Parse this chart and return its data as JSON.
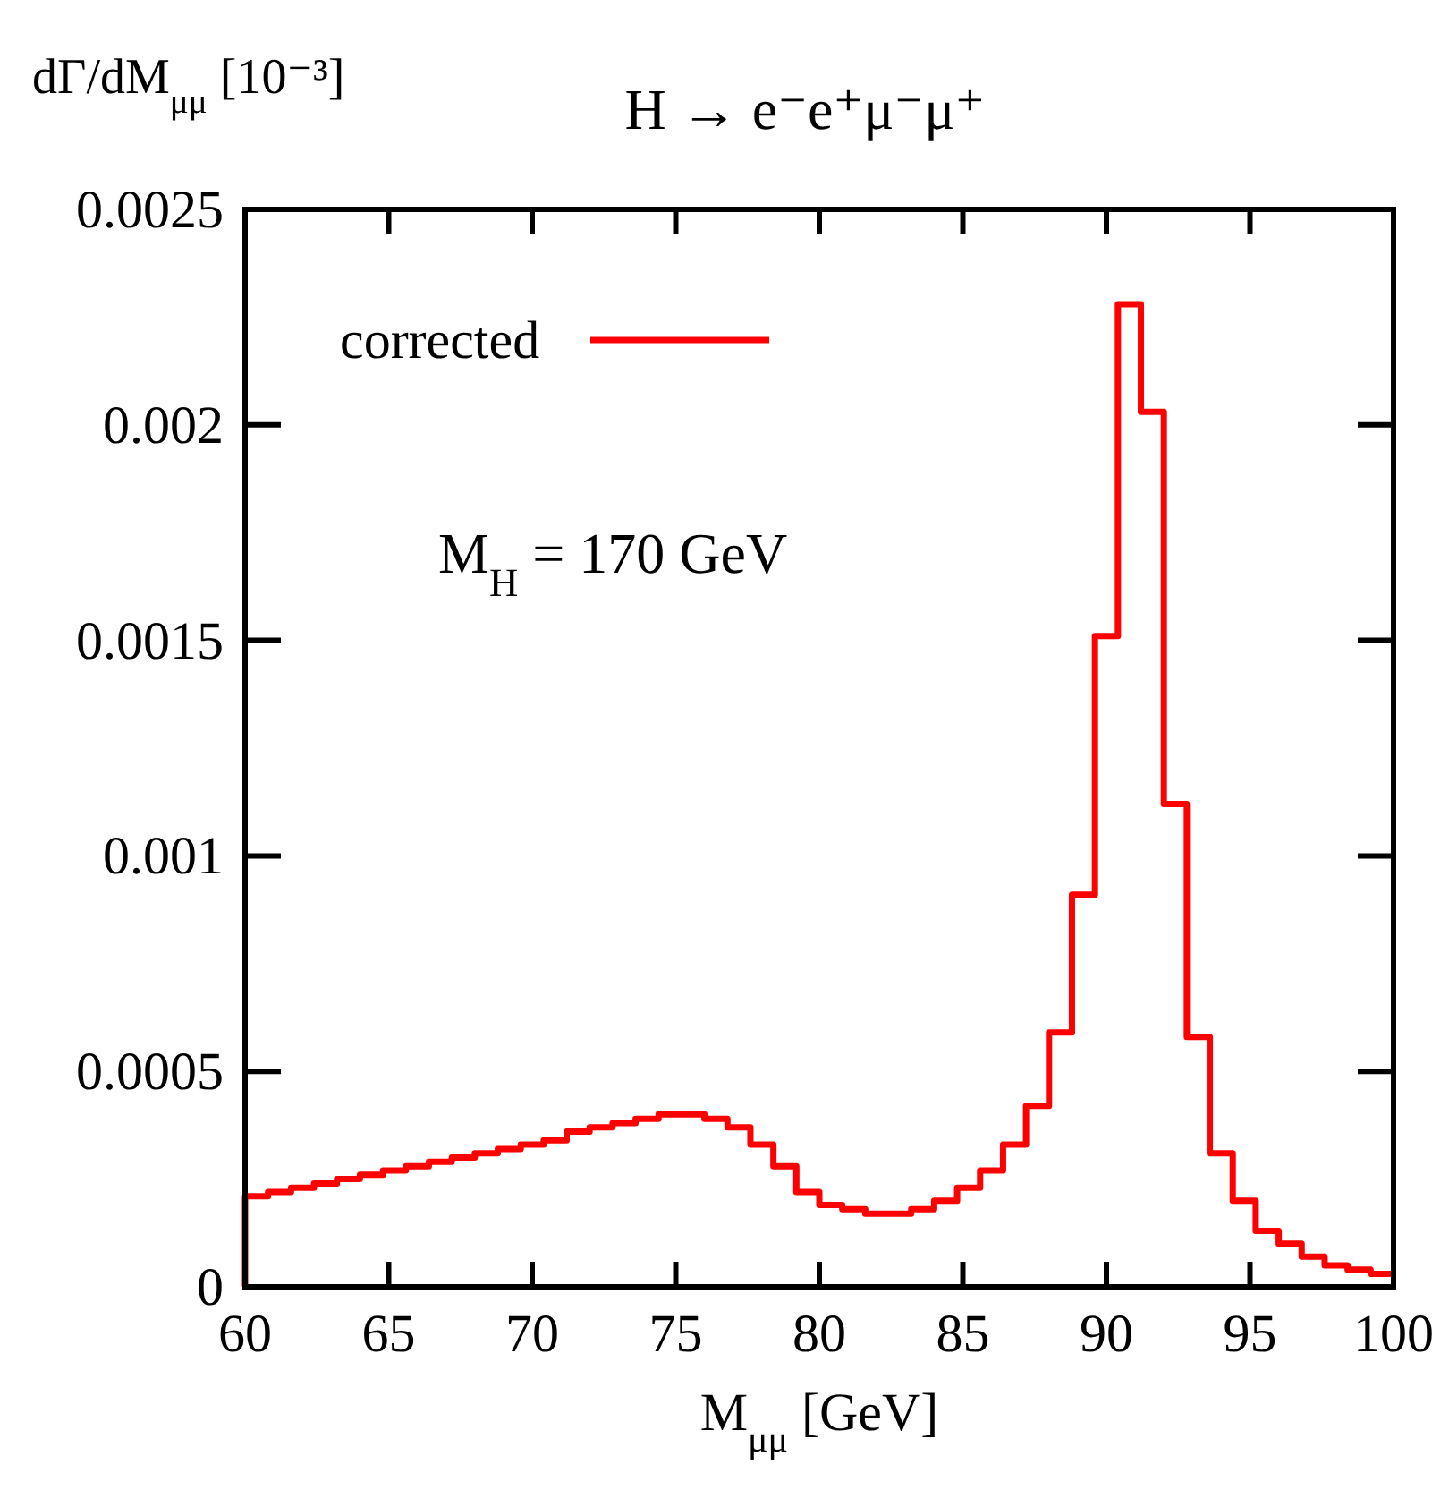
{
  "chart_data": {
    "type": "histogram",
    "title": "H → e⁻e⁺μ⁻μ⁺",
    "xlabel": "M$_{μμ}$ [GeV]",
    "ylabel": "dΓ/dM$_{μμ}$ [10⁻³]",
    "bins": [
      60,
      60.8,
      61.6,
      62.4,
      63.2,
      64,
      64.8,
      65.6,
      66.4,
      67.2,
      68,
      68.8,
      69.6,
      70.4,
      71.2,
      72,
      72.8,
      73.6,
      74.4,
      75.2,
      76,
      76.8,
      77.6,
      78.4,
      79.2,
      80,
      80.8,
      81.6,
      82.4,
      83.2,
      84,
      84.8,
      85.6,
      86.4,
      87.2,
      88,
      88.8,
      89.6,
      90.4,
      91.2,
      92,
      92.8,
      93.6,
      94.4,
      95.2,
      96,
      96.8,
      97.6,
      98.4,
      99.2,
      100
    ],
    "series": [
      {
        "name": "corrected",
        "color": "#ff0000",
        "values": [
          0.00021,
          0.00022,
          0.00023,
          0.00024,
          0.00025,
          0.00026,
          0.00027,
          0.00028,
          0.00029,
          0.0003,
          0.00031,
          0.00032,
          0.00033,
          0.00034,
          0.00036,
          0.00037,
          0.00038,
          0.00039,
          0.0004,
          0.0004,
          0.00039,
          0.00037,
          0.00033,
          0.00028,
          0.00022,
          0.00019,
          0.00018,
          0.00017,
          0.00017,
          0.00018,
          0.0002,
          0.00023,
          0.00027,
          0.00033,
          0.00042,
          0.00059,
          0.00091,
          0.00151,
          0.00228,
          0.00203,
          0.00112,
          0.00058,
          0.00031,
          0.0002,
          0.00013,
          0.0001,
          7e-05,
          5e-05,
          4e-05,
          3e-05
        ]
      }
    ],
    "annotations": [
      "M$_{H}$ = 170 GeV"
    ],
    "xlim": [
      60,
      100
    ],
    "xticks": [
      60,
      65,
      70,
      75,
      80,
      85,
      90,
      95,
      100
    ],
    "ylim": [
      0,
      0.0025
    ],
    "yticks": [
      0,
      0.0005,
      0.001,
      0.0015,
      0.002,
      0.0025
    ],
    "legend": "top left",
    "grid": false,
    "line_style": "solid"
  }
}
